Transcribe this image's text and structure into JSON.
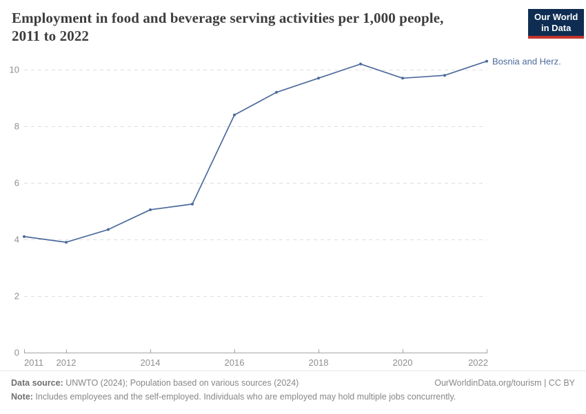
{
  "header": {
    "title_line1": "Employment in food and beverage serving activities per 1,000 people,",
    "title_line2": "2011 to 2022",
    "logo": {
      "line1": "Our World",
      "line2": "in Data"
    }
  },
  "chart_data": {
    "type": "line",
    "title": "Employment in food and beverage serving activities per 1,000 people, 2011 to 2022",
    "x": [
      2011,
      2012,
      2013,
      2014,
      2015,
      2016,
      2017,
      2018,
      2019,
      2020,
      2021,
      2022
    ],
    "series": [
      {
        "name": "Bosnia and Herz.",
        "values": [
          4.1,
          3.9,
          4.35,
          5.05,
          5.25,
          8.4,
          9.2,
          9.7,
          10.2,
          9.7,
          9.8,
          10.3
        ]
      }
    ],
    "x_ticks": [
      2011,
      2012,
      2014,
      2016,
      2018,
      2020,
      2022
    ],
    "y_ticks": [
      0,
      2,
      4,
      6,
      8,
      10
    ],
    "xlim": [
      2011,
      2022
    ],
    "ylim": [
      0,
      10.5
    ],
    "xlabel": "",
    "ylabel": "",
    "grid": "horizontal-dashed",
    "legend_position": "end-of-line-label",
    "colors": {
      "line": "#4c6a9c",
      "series_label": "#4c6a9c",
      "gridline": "#dedede",
      "axis": "#a3a3a3",
      "tick_label": "#8f8f8f"
    }
  },
  "footer": {
    "data_source_label": "Data source:",
    "data_source_text": " UNWTO (2024); Population based on various sources (2024)",
    "credit": "OurWorldinData.org/tourism | CC BY",
    "note_label": "Note:",
    "note_text": " Includes employees and the self-employed. Individuals who are employed may hold multiple jobs concurrently."
  }
}
